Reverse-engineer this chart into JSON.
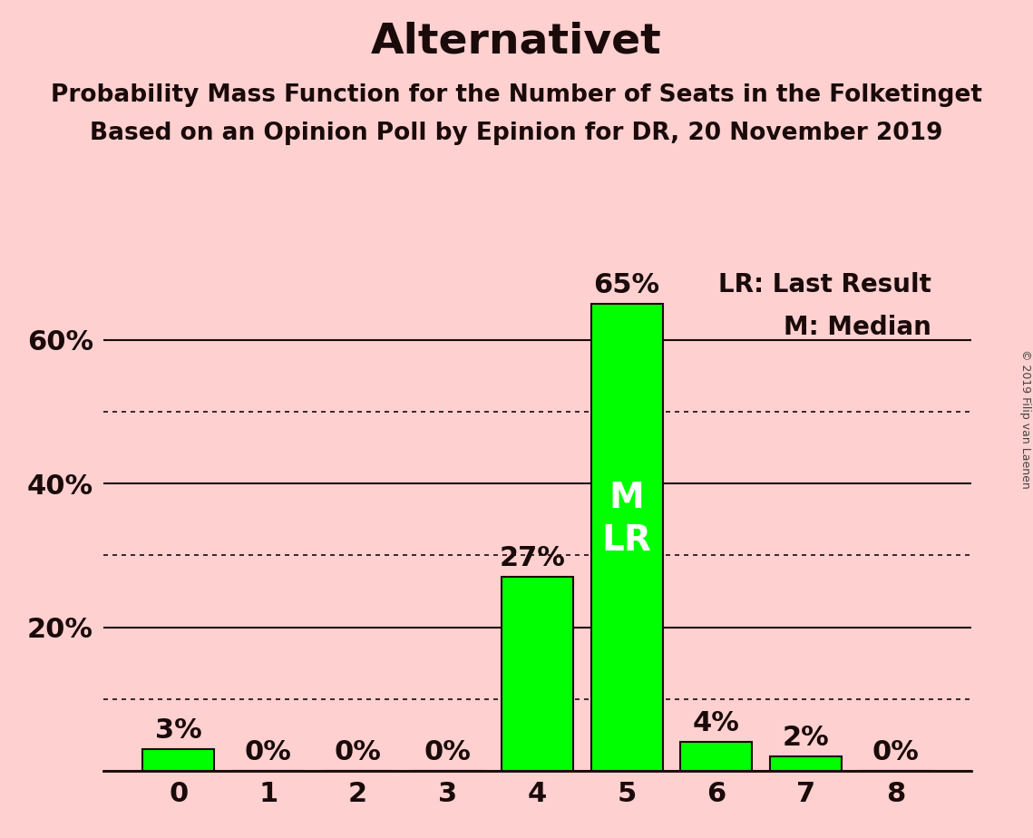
{
  "title": "Alternativet",
  "subtitle1": "Probability Mass Function for the Number of Seats in the Folketinget",
  "subtitle2": "Based on an Opinion Poll by Epinion for DR, 20 November 2019",
  "copyright": "© 2019 Filip van Laenen",
  "legend_line1": "LR: Last Result",
  "legend_line2": "M: Median",
  "categories": [
    0,
    1,
    2,
    3,
    4,
    5,
    6,
    7,
    8
  ],
  "values": [
    3,
    0,
    0,
    0,
    27,
    65,
    4,
    2,
    0
  ],
  "bar_color": "#00FF00",
  "background_color": "#FFD0D0",
  "bar_edge_color": "#1a0a0a",
  "title_fontsize": 34,
  "subtitle_fontsize": 19,
  "tick_fontsize": 22,
  "annotation_fontsize": 22,
  "legend_fontsize": 20,
  "inside_label_fontsize": 28,
  "ylim": [
    0,
    70
  ],
  "solid_yticks": [
    0,
    20,
    40,
    60
  ],
  "dotted_yticks": [
    10,
    30,
    50
  ],
  "median_bar": 5,
  "lr_bar": 5,
  "inside_label_color": "#FFFFFF",
  "text_color": "#1a0a0a"
}
